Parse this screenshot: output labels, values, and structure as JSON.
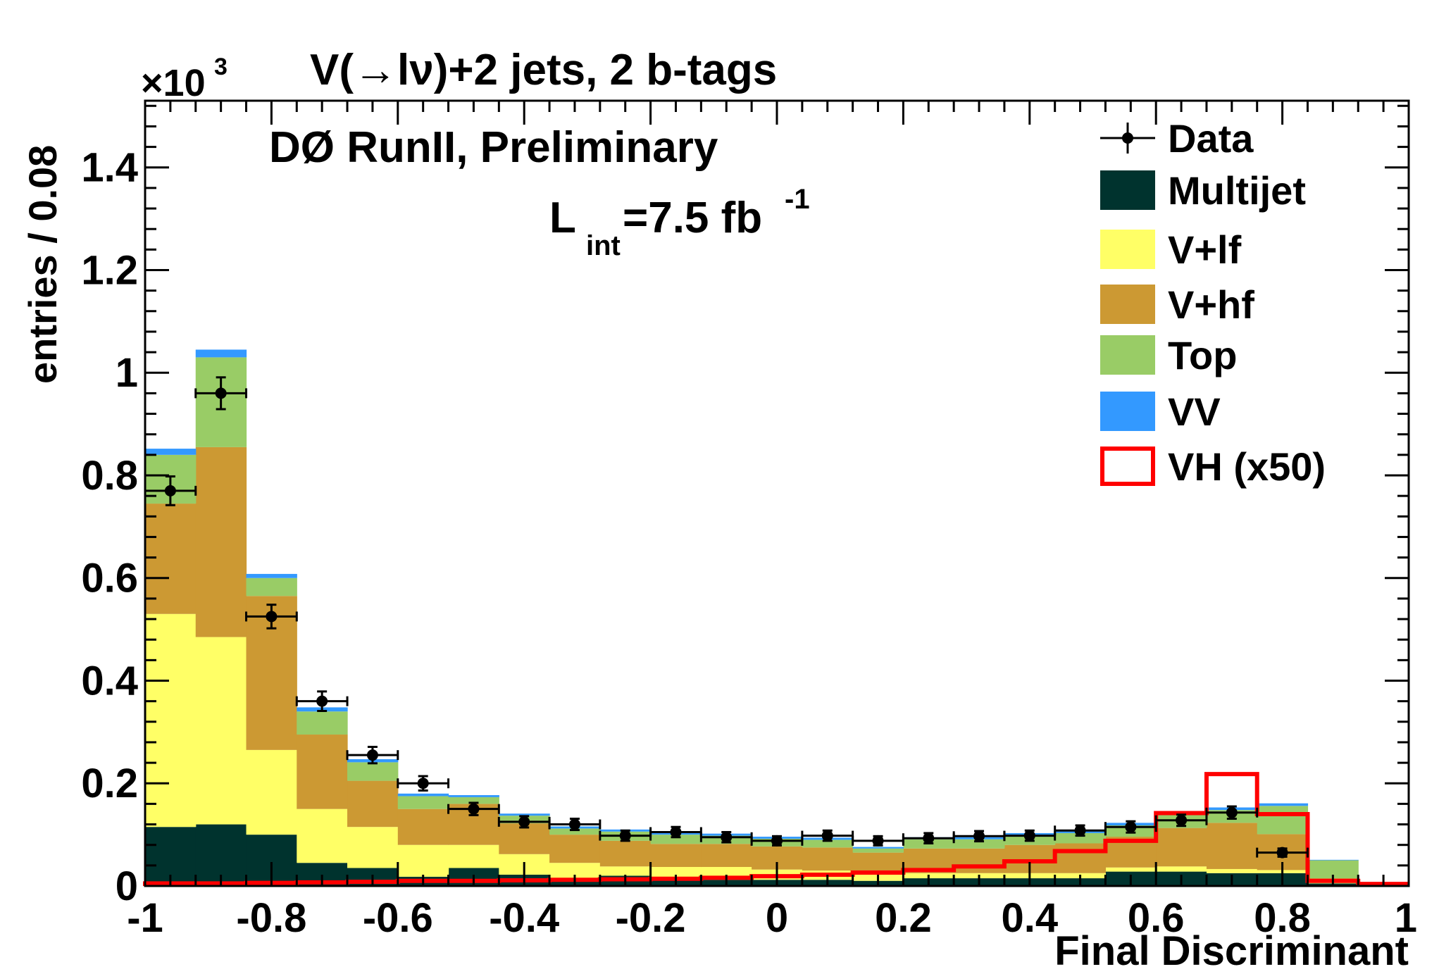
{
  "chart_data": {
    "type": "bar",
    "stacked": true,
    "title": "V(→lν)+2 jets, 2 b-tags",
    "experiment_label": "DØ RunII, Preliminary",
    "luminosity": {
      "main": "L",
      "sub": "int",
      "value": "=7.5 fb",
      "sup": "-1"
    },
    "xlabel": "Final Discriminant",
    "ylabel": "entries / 0.08",
    "y_multiplier": {
      "base": "×10",
      "exp": "3"
    },
    "xlim": [
      -1,
      1
    ],
    "ylim": [
      0,
      1.53
    ],
    "x_ticks": [
      -1,
      -0.8,
      -0.6,
      -0.4,
      -0.2,
      0,
      0.2,
      0.4,
      0.6,
      0.8,
      1
    ],
    "x_tick_labels": [
      "-1",
      "-0.8",
      "-0.6",
      "-0.4",
      "-0.2",
      "0",
      "0.2",
      "0.4",
      "0.6",
      "0.8",
      "1"
    ],
    "y_ticks": [
      0,
      0.2,
      0.4,
      0.6,
      0.8,
      1,
      1.2,
      1.4
    ],
    "y_tick_labels": [
      "0",
      "0.2",
      "0.4",
      "0.6",
      "0.8",
      "1",
      "1.2",
      "1.4"
    ],
    "bin_edges": [
      -1,
      -0.92,
      -0.84,
      -0.76,
      -0.68,
      -0.6,
      -0.52,
      -0.44,
      -0.36,
      -0.28,
      -0.2,
      -0.12,
      -0.04,
      0.04,
      0.12,
      0.2,
      0.28,
      0.36,
      0.44,
      0.52,
      0.6,
      0.68,
      0.76,
      0.84,
      0.92,
      1
    ],
    "series": [
      {
        "name": "Multijet",
        "color": "#00332e",
        "values": [
          0.115,
          0.12,
          0.1,
          0.045,
          0.035,
          0.018,
          0.035,
          0.022,
          0.015,
          0.02,
          0.015,
          0.012,
          0.012,
          0.012,
          0.01,
          0.015,
          0.015,
          0.015,
          0.015,
          0.028,
          0.028,
          0.025,
          0.025,
          0.005,
          0
        ]
      },
      {
        "name": "V+lf",
        "color": "#ffff66",
        "values": [
          0.415,
          0.365,
          0.165,
          0.105,
          0.08,
          0.062,
          0.045,
          0.04,
          0.03,
          0.018,
          0.022,
          0.025,
          0.02,
          0.018,
          0.015,
          0.01,
          0.01,
          0.01,
          0.01,
          0.008,
          0.01,
          0.008,
          0.006,
          0.002,
          0
        ]
      },
      {
        "name": "V+hf",
        "color": "#cc9933",
        "values": [
          0.215,
          0.37,
          0.3,
          0.145,
          0.09,
          0.07,
          0.08,
          0.06,
          0.055,
          0.05,
          0.045,
          0.045,
          0.045,
          0.045,
          0.04,
          0.048,
          0.048,
          0.055,
          0.058,
          0.06,
          0.075,
          0.09,
          0.07,
          0.008,
          0
        ]
      },
      {
        "name": "Top",
        "color": "#99cc66",
        "values": [
          0.095,
          0.175,
          0.035,
          0.045,
          0.036,
          0.025,
          0.013,
          0.015,
          0.012,
          0.018,
          0.018,
          0.016,
          0.015,
          0.015,
          0.008,
          0.018,
          0.018,
          0.019,
          0.02,
          0.022,
          0.025,
          0.025,
          0.055,
          0.035,
          0.003
        ]
      },
      {
        "name": "VV",
        "color": "#3399ff",
        "values": [
          0.012,
          0.015,
          0.008,
          0.008,
          0.006,
          0.005,
          0.004,
          0.004,
          0.004,
          0.004,
          0.004,
          0.004,
          0.004,
          0.004,
          0.003,
          0.004,
          0.004,
          0.004,
          0.005,
          0.005,
          0.005,
          0.005,
          0.005,
          0.001,
          0
        ]
      }
    ],
    "data_points": {
      "name": "Data",
      "x": [
        -0.96,
        -0.88,
        -0.8,
        -0.72,
        -0.64,
        -0.56,
        -0.48,
        -0.4,
        -0.32,
        -0.24,
        -0.16,
        -0.08,
        0,
        0.08,
        0.16,
        0.24,
        0.32,
        0.4,
        0.48,
        0.56,
        0.64,
        0.72,
        0.8
      ],
      "y": [
        0.77,
        0.96,
        0.525,
        0.36,
        0.255,
        0.2,
        0.15,
        0.125,
        0.12,
        0.098,
        0.105,
        0.095,
        0.088,
        0.098,
        0.088,
        0.093,
        0.097,
        0.098,
        0.108,
        0.115,
        0.128,
        0.143,
        0.065
      ],
      "err": [
        0.028,
        0.031,
        0.023,
        0.019,
        0.016,
        0.014,
        0.012,
        0.011,
        0.011,
        0.01,
        0.01,
        0.01,
        0.009,
        0.01,
        0.009,
        0.01,
        0.01,
        0.01,
        0.01,
        0.011,
        0.011,
        0.012,
        0.008
      ]
    },
    "signal": {
      "name": "VH (x50)",
      "color": "#ff0000",
      "values": [
        0.005,
        0.005,
        0.006,
        0.007,
        0.008,
        0.01,
        0.01,
        0.011,
        0.012,
        0.013,
        0.014,
        0.016,
        0.019,
        0.022,
        0.026,
        0.031,
        0.038,
        0.048,
        0.068,
        0.088,
        0.142,
        0.218,
        0.14,
        0.01,
        0.004
      ]
    },
    "legend": {
      "position": "top-right",
      "entries": [
        {
          "label": "Data",
          "kind": "data"
        },
        {
          "label": "Multijet",
          "kind": "fill",
          "color": "#00332e"
        },
        {
          "label": "V+lf",
          "kind": "fill",
          "color": "#ffff66"
        },
        {
          "label": "V+hf",
          "kind": "fill",
          "color": "#cc9933"
        },
        {
          "label": "Top",
          "kind": "fill",
          "color": "#99cc66"
        },
        {
          "label": "VV",
          "kind": "fill",
          "color": "#3399ff"
        },
        {
          "label": "VH (x50)",
          "kind": "outline",
          "color": "#ff0000"
        }
      ]
    }
  }
}
